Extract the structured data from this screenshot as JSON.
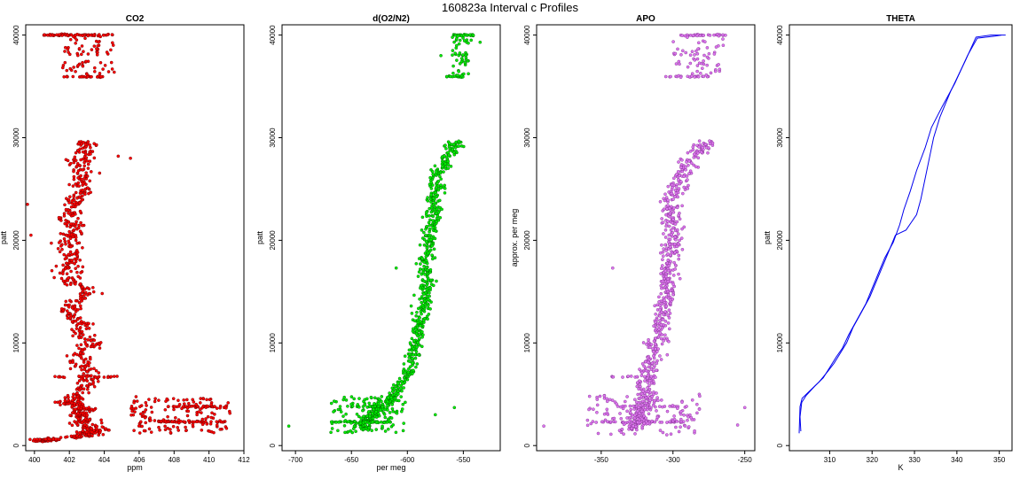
{
  "title": "160823a   Interval c Profiles",
  "chart_data": [
    {
      "type": "scatter",
      "title": "CO2",
      "xlabel": "ppm",
      "ylabel": "patt",
      "xlim": [
        399.5,
        412
      ],
      "ylim": [
        -500,
        41000
      ],
      "xticks": [
        400,
        402,
        404,
        406,
        408,
        410,
        412
      ],
      "yticks": [
        0,
        10000,
        20000,
        30000,
        40000
      ],
      "color": "#ff0000",
      "edge_color": "#5a0000",
      "profile": [
        [
          400.4,
          400
        ],
        [
          400.3,
          500
        ],
        [
          400.5,
          600
        ],
        [
          400.9,
          600
        ],
        [
          402.6,
          900
        ],
        [
          403.2,
          1100
        ],
        [
          403.0,
          1300
        ],
        [
          403.8,
          1600
        ],
        [
          402.8,
          2000
        ],
        [
          403.0,
          2500
        ],
        [
          402.4,
          3000
        ],
        [
          402.6,
          3500
        ],
        [
          403.0,
          3600
        ],
        [
          402.2,
          4000
        ],
        [
          402.0,
          4300
        ],
        [
          402.4,
          5000
        ],
        [
          402.8,
          6000
        ],
        [
          403.3,
          7000
        ],
        [
          402.5,
          8000
        ],
        [
          402.8,
          9000
        ],
        [
          403.5,
          10000
        ],
        [
          402.5,
          11000
        ],
        [
          402.6,
          12000
        ],
        [
          401.9,
          13000
        ],
        [
          402.3,
          14000
        ],
        [
          403.2,
          15000
        ],
        [
          402.2,
          16000
        ],
        [
          401.8,
          17000
        ],
        [
          402.2,
          18000
        ],
        [
          402.0,
          19000
        ],
        [
          401.9,
          20000
        ],
        [
          402.4,
          21000
        ],
        [
          401.8,
          22000
        ],
        [
          402.3,
          23000
        ],
        [
          402.3,
          24000
        ],
        [
          402.9,
          25000
        ],
        [
          402.6,
          26000
        ],
        [
          402.9,
          27000
        ],
        [
          402.5,
          28000
        ],
        [
          403.0,
          29000
        ],
        [
          402.9,
          29700
        ]
      ],
      "spread": 0.6,
      "bands": [
        {
          "y": 40000,
          "x": [
            400.5,
            404.5
          ],
          "n": 70
        },
        {
          "y": 35950,
          "x": [
            401.4,
            404.4
          ],
          "n": 25
        },
        {
          "y": 6700,
          "x": [
            401.0,
            404.8
          ],
          "n": 25
        },
        {
          "y": 3800,
          "x": [
            407.5,
            411.0
          ],
          "n": 30
        },
        {
          "y": 2300,
          "x": [
            407.0,
            411.0
          ],
          "n": 45
        }
      ],
      "clusters": [
        {
          "x": [
            401.6,
            404.6
          ],
          "y": [
            36000,
            40000
          ],
          "n": 70
        },
        {
          "x": [
            405.5,
            411.2
          ],
          "y": [
            1200,
            4800
          ],
          "n": 150
        }
      ],
      "outliers": [
        [
          399.6,
          23500
        ],
        [
          399.8,
          20500
        ],
        [
          404.8,
          28200
        ],
        [
          405.5,
          28000
        ]
      ]
    },
    {
      "type": "scatter",
      "title": "d(O2/N2)",
      "xlabel": "per meg",
      "ylabel": "patt",
      "xlim": [
        -712,
        -517
      ],
      "ylim": [
        -500,
        41000
      ],
      "xticks": [
        -700,
        -650,
        -600,
        -550
      ],
      "yticks": [
        0,
        10000,
        20000,
        30000,
        40000
      ],
      "color": "#00ee00",
      "edge_color": "#005500",
      "profile": [
        [
          -635,
          1500
        ],
        [
          -640,
          2000
        ],
        [
          -638,
          2500
        ],
        [
          -630,
          3000
        ],
        [
          -625,
          3500
        ],
        [
          -622,
          4000
        ],
        [
          -615,
          4500
        ],
        [
          -612,
          5000
        ],
        [
          -605,
          6000
        ],
        [
          -600,
          7000
        ],
        [
          -595,
          8000
        ],
        [
          -594,
          9000
        ],
        [
          -592,
          10000
        ],
        [
          -590,
          11000
        ],
        [
          -590,
          12000
        ],
        [
          -588,
          13000
        ],
        [
          -586,
          14000
        ],
        [
          -584,
          15000
        ],
        [
          -582,
          16000
        ],
        [
          -584,
          17000
        ],
        [
          -584,
          18000
        ],
        [
          -580,
          19000
        ],
        [
          -580,
          20000
        ],
        [
          -578,
          21000
        ],
        [
          -578,
          22000
        ],
        [
          -575,
          23000
        ],
        [
          -578,
          24000
        ],
        [
          -575,
          25000
        ],
        [
          -575,
          26000
        ],
        [
          -570,
          27000
        ],
        [
          -565,
          28000
        ],
        [
          -560,
          29000
        ],
        [
          -556,
          29700
        ]
      ],
      "spread": 6,
      "bands": [
        {
          "y": 40000,
          "x": [
            -560,
            -540
          ],
          "n": 30
        },
        {
          "y": 35950,
          "x": [
            -565,
            -548
          ],
          "n": 15
        },
        {
          "y": 2300,
          "x": [
            -665,
            -615
          ],
          "n": 50
        },
        {
          "y": 3800,
          "x": [
            -650,
            -620
          ],
          "n": 20
        }
      ],
      "clusters": [
        {
          "x": [
            -560,
            -545
          ],
          "y": [
            36000,
            40000
          ],
          "n": 50
        },
        {
          "x": [
            -670,
            -600
          ],
          "y": [
            1200,
            4800
          ],
          "n": 120
        }
      ],
      "outliers": [
        [
          -706,
          1900
        ],
        [
          -543,
          39500
        ],
        [
          -535,
          39300
        ],
        [
          -558,
          3700
        ],
        [
          -575,
          3000
        ],
        [
          -610,
          17300
        ],
        [
          -570,
          38000
        ]
      ]
    },
    {
      "type": "scatter",
      "title": "APO",
      "xlabel": "",
      "ylabel": "approx. per meg",
      "xlim": [
        -395,
        -243
      ],
      "ylim": [
        -500,
        41000
      ],
      "xticks": [
        -350,
        -300,
        -250
      ],
      "yticks": [
        0,
        10000,
        20000,
        30000,
        40000
      ],
      "color": "#dd77ee",
      "edge_color": "#7a2a8a",
      "profile": [
        [
          -330,
          1500
        ],
        [
          -325,
          2000
        ],
        [
          -322,
          2500
        ],
        [
          -326,
          3000
        ],
        [
          -322,
          3500
        ],
        [
          -320,
          4000
        ],
        [
          -318,
          5000
        ],
        [
          -318,
          6000
        ],
        [
          -318,
          7000
        ],
        [
          -315,
          8000
        ],
        [
          -312,
          9000
        ],
        [
          -312,
          10000
        ],
        [
          -310,
          11000
        ],
        [
          -310,
          12000
        ],
        [
          -306,
          13000
        ],
        [
          -306,
          14000
        ],
        [
          -304,
          15000
        ],
        [
          -304,
          16000
        ],
        [
          -302,
          17000
        ],
        [
          -302,
          18000
        ],
        [
          -300,
          19000
        ],
        [
          -300,
          20000
        ],
        [
          -300,
          21000
        ],
        [
          -302,
          22000
        ],
        [
          -302,
          23000
        ],
        [
          -303,
          24000
        ],
        [
          -296,
          25000
        ],
        [
          -296,
          26000
        ],
        [
          -292,
          27000
        ],
        [
          -287,
          28000
        ],
        [
          -280,
          29000
        ],
        [
          -276,
          29700
        ]
      ],
      "spread": 6,
      "bands": [
        {
          "y": 40000,
          "x": [
            -295,
            -262
          ],
          "n": 30
        },
        {
          "y": 35950,
          "x": [
            -305,
            -275
          ],
          "n": 20
        },
        {
          "y": 6700,
          "x": [
            -345,
            -310
          ],
          "n": 15
        },
        {
          "y": 3800,
          "x": [
            -340,
            -290
          ],
          "n": 20
        },
        {
          "y": 2300,
          "x": [
            -355,
            -290
          ],
          "n": 45
        }
      ],
      "clusters": [
        {
          "x": [
            -300,
            -265
          ],
          "y": [
            36000,
            40000
          ],
          "n": 60
        },
        {
          "x": [
            -360,
            -280
          ],
          "y": [
            1000,
            5000
          ],
          "n": 130
        }
      ],
      "outliers": [
        [
          -390,
          1900
        ],
        [
          -250,
          3700
        ],
        [
          -342,
          17300
        ],
        [
          -255,
          2000
        ],
        [
          -265,
          39000
        ]
      ]
    },
    {
      "type": "line",
      "title": "THETA",
      "xlabel": "K",
      "ylabel": "patt",
      "xlim": [
        300.5,
        353
      ],
      "ylim": [
        -500,
        41000
      ],
      "xticks": [
        310,
        320,
        330,
        340,
        350
      ],
      "yticks": [
        0,
        10000,
        20000,
        30000,
        40000
      ],
      "color": "#0000ee",
      "series": [
        {
          "points": [
            [
              302.8,
              1200
            ],
            [
              302.9,
              2500
            ],
            [
              303.0,
              3800
            ],
            [
              303.5,
              4600
            ],
            [
              305.0,
              5200
            ],
            [
              307.5,
              6200
            ],
            [
              309.5,
              7200
            ],
            [
              311.0,
              8000
            ],
            [
              312.5,
              9000
            ],
            [
              314.0,
              10000
            ],
            [
              315.5,
              11500
            ],
            [
              317.5,
              13000
            ],
            [
              319.5,
              14500
            ],
            [
              321.0,
              16000
            ],
            [
              322.5,
              17500
            ],
            [
              324.0,
              19000
            ],
            [
              325.5,
              20500
            ],
            [
              328.0,
              21000
            ],
            [
              330.5,
              22500
            ],
            [
              331.5,
              24000
            ],
            [
              332.5,
              26000
            ],
            [
              333.5,
              28000
            ],
            [
              334.5,
              30000
            ],
            [
              336.0,
              32000
            ],
            [
              338.5,
              34500
            ],
            [
              342.0,
              37500
            ],
            [
              344.5,
              39800
            ],
            [
              348.0,
              40000
            ],
            [
              351.5,
              40000
            ]
          ]
        },
        {
          "points": [
            [
              303.2,
              1400
            ],
            [
              303.0,
              2800
            ],
            [
              303.4,
              4200
            ],
            [
              304.5,
              4900
            ],
            [
              306.5,
              5800
            ],
            [
              308.5,
              6600
            ],
            [
              310.0,
              7600
            ],
            [
              311.5,
              8600
            ],
            [
              313.0,
              9500
            ],
            [
              314.5,
              10800
            ],
            [
              316.5,
              12300
            ],
            [
              318.5,
              13800
            ],
            [
              320.0,
              15300
            ],
            [
              321.5,
              16800
            ],
            [
              323.0,
              18300
            ],
            [
              325.0,
              19800
            ],
            [
              326.5,
              21500
            ],
            [
              327.5,
              23000
            ],
            [
              329.0,
              24800
            ],
            [
              330.5,
              26800
            ],
            [
              332.5,
              29000
            ],
            [
              334.0,
              31000
            ],
            [
              336.5,
              33000
            ],
            [
              339.5,
              35300
            ],
            [
              342.5,
              38000
            ],
            [
              344.8,
              39700
            ],
            [
              349.0,
              39900
            ],
            [
              350.5,
              40000
            ]
          ]
        }
      ]
    }
  ]
}
